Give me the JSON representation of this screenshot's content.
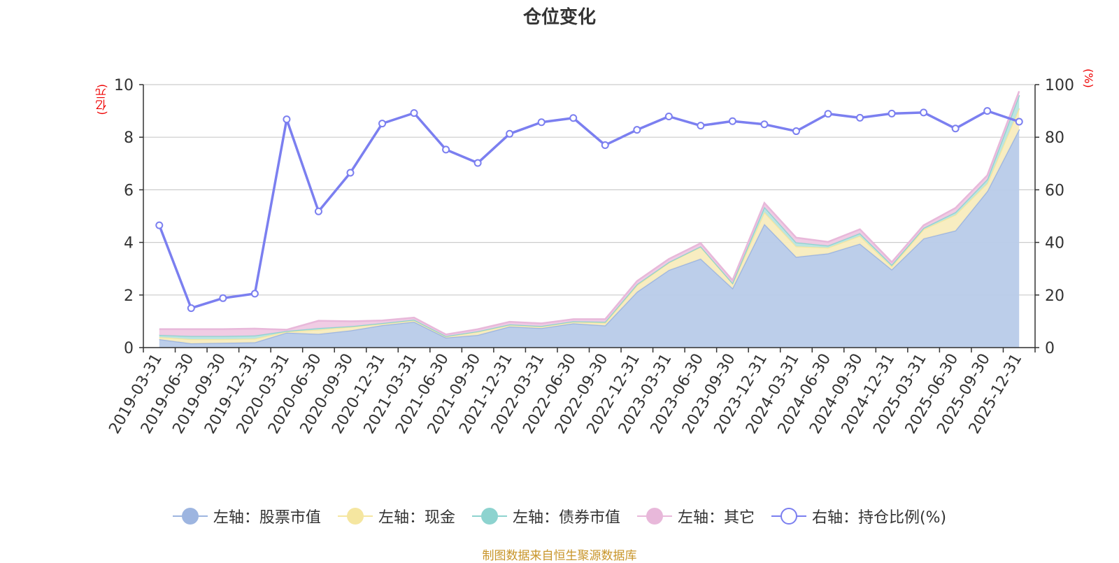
{
  "chart_data": {
    "type": "area",
    "title": "仓位变化",
    "left_unit": "(亿元)",
    "right_unit": "(%)",
    "x": [
      "2019-03-31",
      "2019-06-30",
      "2019-09-30",
      "2019-12-31",
      "2020-03-31",
      "2020-06-30",
      "2020-09-30",
      "2020-12-31",
      "2021-03-31",
      "2021-06-30",
      "2021-09-30",
      "2021-12-31",
      "2022-03-31",
      "2022-06-30",
      "2022-09-30",
      "2022-12-31",
      "2023-03-31",
      "2023-06-30",
      "2023-09-30",
      "2023-12-31",
      "2024-03-31",
      "2024-06-30",
      "2024-09-30",
      "2024-12-31",
      "2025-03-31",
      "2025-06-30",
      "2025-09-30",
      "2025-12-31"
    ],
    "ylim_left": [
      0,
      10
    ],
    "ylim_right": [
      0,
      100
    ],
    "left_ticks": [
      "0",
      "2",
      "4",
      "6",
      "8",
      "10"
    ],
    "right_ticks": [
      "0",
      "20",
      "40",
      "60",
      "80",
      "100"
    ],
    "series": [
      {
        "name": "左轴：股票市值",
        "axis": "left",
        "color": "#9db5e0",
        "fill": "#b8cbe9",
        "values": [
          0.32,
          0.16,
          0.18,
          0.2,
          0.57,
          0.52,
          0.65,
          0.85,
          0.98,
          0.38,
          0.48,
          0.8,
          0.74,
          0.92,
          0.84,
          2.12,
          2.95,
          3.38,
          2.26,
          4.7,
          3.45,
          3.58,
          3.95,
          2.97,
          4.15,
          4.45,
          5.95,
          8.3
        ]
      },
      {
        "name": "左轴：现金",
        "axis": "left",
        "color": "#f5e6a0",
        "fill": "#f8ecbe",
        "values": [
          0.08,
          0.16,
          0.14,
          0.14,
          0.04,
          0.16,
          0.14,
          0.06,
          0.06,
          0.04,
          0.12,
          0.06,
          0.06,
          0.06,
          0.1,
          0.25,
          0.28,
          0.45,
          0.18,
          0.45,
          0.4,
          0.22,
          0.3,
          0.12,
          0.35,
          0.6,
          0.3,
          0.8
        ]
      },
      {
        "name": "左轴：债券市值",
        "axis": "left",
        "color": "#8dd3cf",
        "fill": "#b8e4e0",
        "values": [
          0.08,
          0.12,
          0.12,
          0.12,
          0.02,
          0.06,
          0.02,
          0.02,
          0.02,
          0.02,
          0.02,
          0.02,
          0.02,
          0.02,
          0.04,
          0.04,
          0.02,
          0.02,
          0.02,
          0.2,
          0.15,
          0.08,
          0.1,
          0.06,
          0.05,
          0.1,
          0.15,
          0.5
        ]
      },
      {
        "name": "左轴：其它",
        "axis": "left",
        "color": "#e8b8da",
        "fill": "#efc9e3",
        "values": [
          0.22,
          0.26,
          0.26,
          0.26,
          0.05,
          0.28,
          0.19,
          0.1,
          0.08,
          0.06,
          0.08,
          0.1,
          0.1,
          0.08,
          0.1,
          0.12,
          0.12,
          0.12,
          0.1,
          0.15,
          0.18,
          0.14,
          0.15,
          0.1,
          0.1,
          0.16,
          0.15,
          0.15
        ]
      },
      {
        "name": "右轴：持仓比例(%)",
        "axis": "right",
        "color": "#7b7ff0",
        "values": [
          46.5,
          15.0,
          18.8,
          20.5,
          86.8,
          51.8,
          66.5,
          85.2,
          89.2,
          75.3,
          70.2,
          81.3,
          85.7,
          87.3,
          77.0,
          82.8,
          87.9,
          84.4,
          86.1,
          84.9,
          82.3,
          88.9,
          87.4,
          89.0,
          89.4,
          83.3,
          90.0,
          85.9
        ]
      }
    ]
  },
  "source_text": "制图数据来自恒生聚源数据库"
}
